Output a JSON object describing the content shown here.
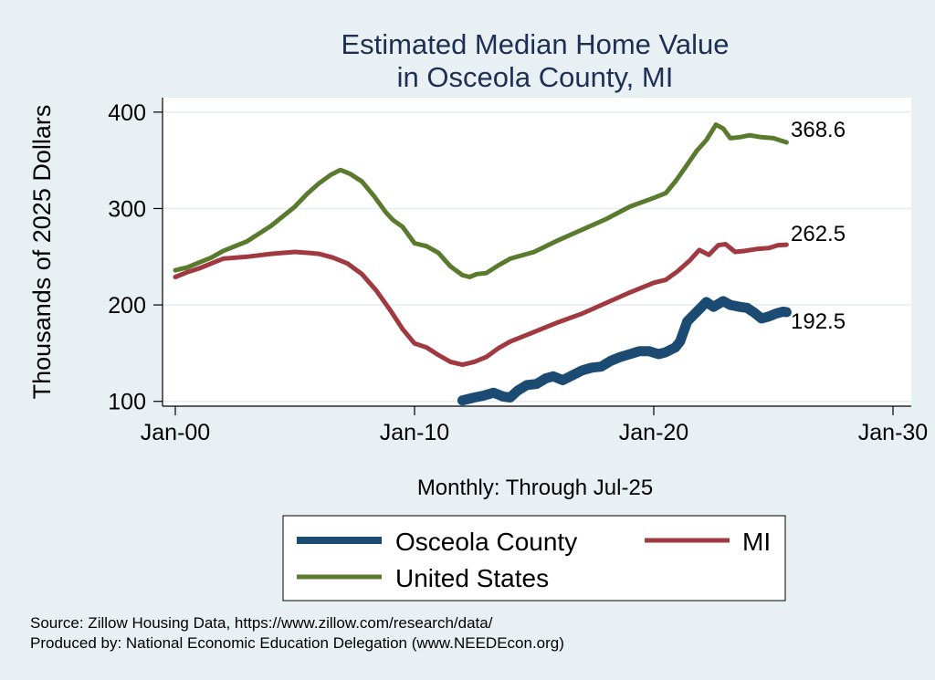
{
  "chart_data": {
    "type": "line",
    "title": [
      "Estimated Median Home Value",
      "in Osceola County, MI"
    ],
    "ylabel": "Thousands of 2025 Dollars",
    "xlabel": "Monthly: Through Jul-25",
    "ylim": [
      95,
      415
    ],
    "xlim": [
      2000,
      2030
    ],
    "yticks": [
      100,
      200,
      300,
      400
    ],
    "xticks": [
      {
        "value": 2000,
        "label": "Jan-00"
      },
      {
        "value": 2010,
        "label": "Jan-10"
      },
      {
        "value": 2020,
        "label": "Jan-20"
      },
      {
        "value": 2030,
        "label": "Jan-30"
      }
    ],
    "grid": true,
    "legend_position": "bottom",
    "series": [
      {
        "name": "Osceola County",
        "color": "#1b4a72",
        "end_label": "192.5",
        "points": [
          [
            2012.0,
            101
          ],
          [
            2012.5,
            104
          ],
          [
            2012.9,
            106
          ],
          [
            2013.3,
            109
          ],
          [
            2013.7,
            105
          ],
          [
            2014.0,
            104
          ],
          [
            2014.3,
            111
          ],
          [
            2014.7,
            117
          ],
          [
            2015.1,
            118
          ],
          [
            2015.5,
            124
          ],
          [
            2015.8,
            126
          ],
          [
            2016.2,
            122
          ],
          [
            2016.6,
            127
          ],
          [
            2017.0,
            132
          ],
          [
            2017.4,
            135
          ],
          [
            2017.8,
            136
          ],
          [
            2018.2,
            142
          ],
          [
            2018.6,
            146
          ],
          [
            2019.0,
            149
          ],
          [
            2019.4,
            152
          ],
          [
            2019.8,
            152
          ],
          [
            2020.2,
            149
          ],
          [
            2020.5,
            151
          ],
          [
            2020.9,
            156
          ],
          [
            2021.1,
            162
          ],
          [
            2021.4,
            183
          ],
          [
            2021.8,
            193
          ],
          [
            2022.2,
            203
          ],
          [
            2022.5,
            198
          ],
          [
            2022.9,
            204
          ],
          [
            2023.2,
            200
          ],
          [
            2023.6,
            198
          ],
          [
            2023.9,
            197
          ],
          [
            2024.2,
            192
          ],
          [
            2024.5,
            186
          ],
          [
            2024.8,
            188
          ],
          [
            2025.1,
            191
          ],
          [
            2025.4,
            193
          ],
          [
            2025.55,
            192.5
          ]
        ]
      },
      {
        "name": "MI",
        "color": "#a13a40",
        "end_label": "262.5",
        "points": [
          [
            2000.0,
            229
          ],
          [
            2000.5,
            234
          ],
          [
            2001.0,
            238
          ],
          [
            2001.5,
            243
          ],
          [
            2002.0,
            248
          ],
          [
            2003.0,
            250
          ],
          [
            2004.0,
            253
          ],
          [
            2005.0,
            255
          ],
          [
            2005.6,
            254
          ],
          [
            2006.0,
            253
          ],
          [
            2006.6,
            249
          ],
          [
            2007.2,
            243
          ],
          [
            2007.8,
            232
          ],
          [
            2008.4,
            215
          ],
          [
            2009.0,
            194
          ],
          [
            2009.5,
            175
          ],
          [
            2010.0,
            160
          ],
          [
            2010.5,
            156
          ],
          [
            2011.0,
            148
          ],
          [
            2011.5,
            141
          ],
          [
            2012.0,
            138
          ],
          [
            2012.5,
            141
          ],
          [
            2013.0,
            146
          ],
          [
            2013.5,
            155
          ],
          [
            2014.0,
            162
          ],
          [
            2015.0,
            172
          ],
          [
            2016.0,
            182
          ],
          [
            2017.0,
            191
          ],
          [
            2018.0,
            202
          ],
          [
            2019.0,
            213
          ],
          [
            2020.0,
            223
          ],
          [
            2020.5,
            226
          ],
          [
            2021.0,
            235
          ],
          [
            2021.5,
            246
          ],
          [
            2021.9,
            257
          ],
          [
            2022.3,
            252
          ],
          [
            2022.7,
            262
          ],
          [
            2023.0,
            263
          ],
          [
            2023.4,
            255
          ],
          [
            2023.8,
            256
          ],
          [
            2024.3,
            258
          ],
          [
            2024.8,
            259
          ],
          [
            2025.2,
            262
          ],
          [
            2025.55,
            262.5
          ]
        ]
      },
      {
        "name": "United States",
        "color": "#5a7a2e",
        "end_label": "368.6",
        "points": [
          [
            2000.0,
            236
          ],
          [
            2000.5,
            239
          ],
          [
            2001.0,
            244
          ],
          [
            2001.5,
            249
          ],
          [
            2002.0,
            256
          ],
          [
            2003.0,
            266
          ],
          [
            2004.0,
            282
          ],
          [
            2005.0,
            302
          ],
          [
            2005.5,
            315
          ],
          [
            2006.0,
            326
          ],
          [
            2006.5,
            335
          ],
          [
            2006.9,
            340
          ],
          [
            2007.3,
            336
          ],
          [
            2007.8,
            328
          ],
          [
            2008.3,
            313
          ],
          [
            2008.8,
            296
          ],
          [
            2009.1,
            288
          ],
          [
            2009.5,
            281
          ],
          [
            2010.0,
            264
          ],
          [
            2010.5,
            261
          ],
          [
            2011.0,
            254
          ],
          [
            2011.5,
            240
          ],
          [
            2012.0,
            231
          ],
          [
            2012.3,
            229
          ],
          [
            2012.6,
            232
          ],
          [
            2013.0,
            233
          ],
          [
            2013.5,
            241
          ],
          [
            2014.0,
            248
          ],
          [
            2015.0,
            255
          ],
          [
            2016.0,
            267
          ],
          [
            2017.0,
            278
          ],
          [
            2018.0,
            289
          ],
          [
            2019.0,
            302
          ],
          [
            2020.0,
            311
          ],
          [
            2020.5,
            316
          ],
          [
            2020.9,
            328
          ],
          [
            2021.3,
            342
          ],
          [
            2021.8,
            360
          ],
          [
            2022.2,
            371
          ],
          [
            2022.6,
            387
          ],
          [
            2022.9,
            383
          ],
          [
            2023.2,
            373
          ],
          [
            2023.6,
            374
          ],
          [
            2024.0,
            376
          ],
          [
            2024.5,
            374
          ],
          [
            2025.0,
            373
          ],
          [
            2025.55,
            368.6
          ]
        ]
      }
    ]
  },
  "source_lines": [
    "Source: Zillow Housing Data, https://www.zillow.com/research/data/",
    "Produced by: National Economic Education Delegation (www.NEEDEcon.org)"
  ]
}
